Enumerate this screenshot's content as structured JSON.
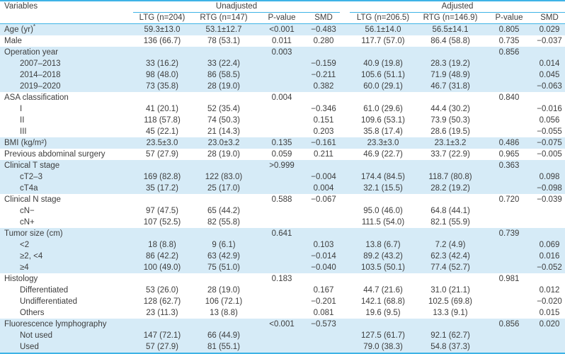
{
  "colors": {
    "accent_line": "#3eb3e6",
    "row_stripe": "#d6ebf7",
    "text": "#3d3d3d"
  },
  "table": {
    "header": {
      "variables": "Variables",
      "unadjusted_group": "Unadjusted",
      "adjusted_group": "Adjusted",
      "unadjusted_cols": [
        "LTG (n=204)",
        "RTG (n=147)",
        "P-value",
        "SMD"
      ],
      "adjusted_cols": [
        "LTG (n=206.5)",
        "RTG (n=146.9)",
        "P-value",
        "SMD"
      ]
    },
    "rows": [
      {
        "label": "Age (yr)",
        "sup": "*",
        "indent": 0,
        "stripe": true,
        "cells": [
          "59.3±13.0",
          "53.1±12.7",
          "<0.001",
          "−0.483",
          "56.1±14.0",
          "56.5±14.1",
          "0.805",
          "0.029"
        ]
      },
      {
        "label": "Male",
        "indent": 0,
        "stripe": false,
        "cells": [
          "136 (66.7)",
          "78 (53.1)",
          "0.011",
          "0.280",
          "117.7 (57.0)",
          "86.4 (58.8)",
          "0.735",
          "−0.037"
        ]
      },
      {
        "label": "Operation year",
        "indent": 0,
        "stripe": true,
        "cells": [
          "",
          "",
          "0.003",
          "",
          "",
          "",
          "0.856",
          ""
        ]
      },
      {
        "label": "2007–2013",
        "indent": 1,
        "stripe": true,
        "cells": [
          "33 (16.2)",
          "33 (22.4)",
          "",
          "−0.159",
          "40.9 (19.8)",
          "28.3 (19.2)",
          "",
          "0.014"
        ]
      },
      {
        "label": "2014–2018",
        "indent": 1,
        "stripe": true,
        "cells": [
          "98 (48.0)",
          "86 (58.5)",
          "",
          "−0.211",
          "105.6 (51.1)",
          "71.9 (48.9)",
          "",
          "0.045"
        ]
      },
      {
        "label": "2019–2020",
        "indent": 1,
        "stripe": true,
        "cells": [
          "73 (35.8)",
          "28 (19.0)",
          "",
          "0.382",
          "60.0 (29.1)",
          "46.7 (31.8)",
          "",
          "−0.063"
        ]
      },
      {
        "label": "ASA classification",
        "indent": 0,
        "stripe": false,
        "cells": [
          "",
          "",
          "0.004",
          "",
          "",
          "",
          "0.840",
          ""
        ]
      },
      {
        "label": "I",
        "indent": 1,
        "stripe": false,
        "cells": [
          "41 (20.1)",
          "52 (35.4)",
          "",
          "−0.346",
          "61.0 (29.6)",
          "44.4 (30.2)",
          "",
          "−0.016"
        ]
      },
      {
        "label": "II",
        "indent": 1,
        "stripe": false,
        "cells": [
          "118 (57.8)",
          "74 (50.3)",
          "",
          "0.151",
          "109.6 (53.1)",
          "73.9 (50.3)",
          "",
          "0.056"
        ]
      },
      {
        "label": "III",
        "indent": 1,
        "stripe": false,
        "cells": [
          "45 (22.1)",
          "21 (14.3)",
          "",
          "0.203",
          "35.8 (17.4)",
          "28.6 (19.5)",
          "",
          "−0.055"
        ]
      },
      {
        "label": "BMI (kg/m²)",
        "indent": 0,
        "stripe": true,
        "cells": [
          "23.5±3.0",
          "23.0±3.2",
          "0.135",
          "−0.161",
          "23.3±3.0",
          "23.1±3.2",
          "0.486",
          "−0.075"
        ]
      },
      {
        "label": "Previous abdominal surgery",
        "indent": 0,
        "stripe": false,
        "cells": [
          "57 (27.9)",
          "28 (19.0)",
          "0.059",
          "0.211",
          "46.9 (22.7)",
          "33.7 (22.9)",
          "0.965",
          "−0.005"
        ]
      },
      {
        "label": "Clinical T stage",
        "indent": 0,
        "stripe": true,
        "cells": [
          "",
          "",
          ">0.999",
          "",
          "",
          "",
          "0.363",
          ""
        ]
      },
      {
        "label": "cT2–3",
        "indent": 1,
        "stripe": true,
        "cells": [
          "169 (82.8)",
          "122 (83.0)",
          "",
          "−0.004",
          "174.4 (84.5)",
          "118.7 (80.8)",
          "",
          "0.098"
        ]
      },
      {
        "label": "cT4a",
        "indent": 1,
        "stripe": true,
        "cells": [
          "35 (17.2)",
          "25 (17.0)",
          "",
          "0.004",
          "32.1 (15.5)",
          "28.2 (19.2)",
          "",
          "−0.098"
        ]
      },
      {
        "label": "Clinical N stage",
        "indent": 0,
        "stripe": false,
        "cells": [
          "",
          "",
          "0.588",
          "−0.067",
          "",
          "",
          "0.720",
          "−0.039"
        ]
      },
      {
        "label": "cN−",
        "indent": 1,
        "stripe": false,
        "cells": [
          "97 (47.5)",
          "65 (44.2)",
          "",
          "",
          "95.0 (46.0)",
          "64.8 (44.1)",
          "",
          ""
        ]
      },
      {
        "label": "cN+",
        "indent": 1,
        "stripe": false,
        "cells": [
          "107 (52.5)",
          "82 (55.8)",
          "",
          "",
          "111.5 (54.0)",
          "82.1 (55.9)",
          "",
          ""
        ]
      },
      {
        "label": "Tumor size (cm)",
        "indent": 0,
        "stripe": true,
        "cells": [
          "",
          "",
          "0.641",
          "",
          "",
          "",
          "0.739",
          ""
        ]
      },
      {
        "label": "<2",
        "indent": 1,
        "stripe": true,
        "cells": [
          "18 (8.8)",
          "9 (6.1)",
          "",
          "0.103",
          "13.8 (6.7)",
          "7.2 (4.9)",
          "",
          "0.069"
        ]
      },
      {
        "label": "≥2, <4",
        "indent": 1,
        "stripe": true,
        "cells": [
          "86 (42.2)",
          "63 (42.9)",
          "",
          "−0.014",
          "89.2 (43.2)",
          "62.3 (42.4)",
          "",
          "0.016"
        ]
      },
      {
        "label": "≥4",
        "indent": 1,
        "stripe": true,
        "cells": [
          "100 (49.0)",
          "75 (51.0)",
          "",
          "−0.040",
          "103.5 (50.1)",
          "77.4 (52.7)",
          "",
          "−0.052"
        ]
      },
      {
        "label": "Histology",
        "indent": 0,
        "stripe": false,
        "cells": [
          "",
          "",
          "0.183",
          "",
          "",
          "",
          "0.981",
          ""
        ]
      },
      {
        "label": "Differentiated",
        "indent": 1,
        "stripe": false,
        "cells": [
          "53 (26.0)",
          "28 (19.0)",
          "",
          "0.167",
          "44.7 (21.6)",
          "31.0 (21.1)",
          "",
          "0.012"
        ]
      },
      {
        "label": "Undifferentiated",
        "indent": 1,
        "stripe": false,
        "cells": [
          "128 (62.7)",
          "106 (72.1)",
          "",
          "−0.201",
          "142.1 (68.8)",
          "102.5 (69.8)",
          "",
          "−0.020"
        ]
      },
      {
        "label": "Others",
        "indent": 1,
        "stripe": false,
        "cells": [
          "23 (11.3)",
          "13 (8.8)",
          "",
          "0.081",
          "19.6 (9.5)",
          "13.3 (9.1)",
          "",
          "0.015"
        ]
      },
      {
        "label": "Fluorescence lymphography",
        "indent": 0,
        "stripe": true,
        "cells": [
          "",
          "",
          "<0.001",
          "−0.573",
          "",
          "",
          "0.856",
          "0.020"
        ]
      },
      {
        "label": "Not used",
        "indent": 1,
        "stripe": true,
        "cells": [
          "147 (72.1)",
          "66 (44.9)",
          "",
          "",
          "127.5 (61.7)",
          "92.1 (62.7)",
          "",
          ""
        ]
      },
      {
        "label": "Used",
        "indent": 1,
        "stripe": true,
        "cells": [
          "57 (27.9)",
          "81 (55.1)",
          "",
          "",
          "79.0 (38.3)",
          "54.8 (37.3)",
          "",
          ""
        ]
      }
    ]
  }
}
